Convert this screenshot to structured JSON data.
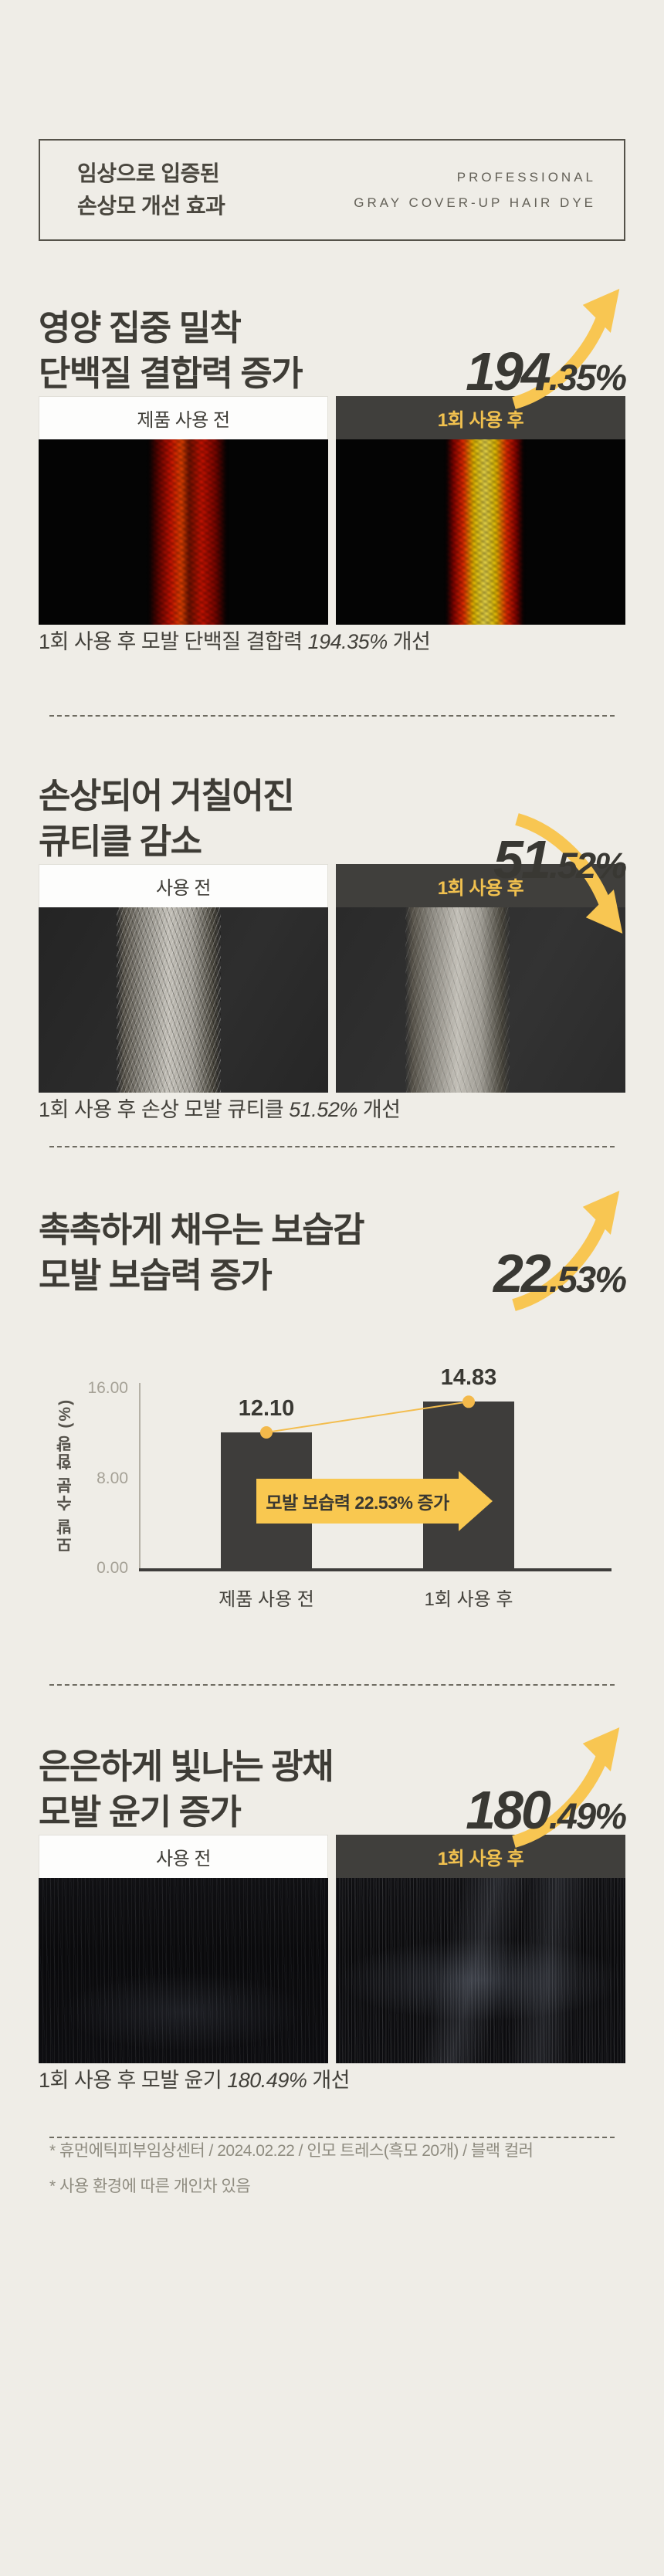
{
  "colors": {
    "background": "#efede7",
    "accent_yellow": "#f8c652",
    "dark_text": "#3e3c36",
    "panel_label_dark_bg": "#403f3c",
    "panel_label_yellow_text": "#f1c14f",
    "bar_color": "#3e3d3b",
    "footnote_gray": "#8f8c80"
  },
  "header": {
    "left_line1": "임상으로 입증된",
    "left_line2": "손상모 개선 효과",
    "right_line1": "PROFESSIONAL",
    "right_line2": "GRAY COVER-UP HAIR DYE"
  },
  "sections": [
    {
      "title_line1": "영양 집중 밀착",
      "title_line2": "단백질 결합력 증가",
      "pct_int": "194",
      "pct_frac": ".35%",
      "trend": "up",
      "before_label": "제품 사용 전",
      "after_label": "1회 사용 후",
      "caption_prefix": "1회 사용 후 모발 단백질 결합력 ",
      "caption_value": "194.35%",
      "caption_suffix": " 개선"
    },
    {
      "title_line1": "손상되어 거칠어진",
      "title_line2": "큐티클 감소",
      "pct_int": "51",
      "pct_frac": ".52%",
      "trend": "down",
      "before_label": "사용 전",
      "after_label": "1회 사용 후",
      "caption_prefix": "1회 사용 후 손상 모발 큐티클 ",
      "caption_value": "51.52%",
      "caption_suffix": " 개선"
    },
    {
      "title_line1": "촉촉하게 채우는 보습감",
      "title_line2": "모발 보습력 증가",
      "pct_int": "22",
      "pct_frac": ".53%",
      "trend": "up"
    },
    {
      "title_line1": "은은하게 빛나는 광채",
      "title_line2": "모발 윤기 증가",
      "pct_int": "180",
      "pct_frac": ".49%",
      "trend": "up",
      "before_label": "사용 전",
      "after_label": "1회 사용 후",
      "caption_prefix": "1회 사용 후 모발 윤기 ",
      "caption_value": "180.49%",
      "caption_suffix": " 개선"
    }
  ],
  "chart_data": {
    "type": "bar",
    "categories": [
      "제품 사용 전",
      "1회 사용 후"
    ],
    "values": [
      12.1,
      14.83
    ],
    "value_labels": [
      "12.10",
      "14.83"
    ],
    "ylabel": "모발 수분 함량 (%)",
    "yticks": [
      "16.00",
      "8.00",
      "0.00"
    ],
    "ytick_values": [
      16,
      8,
      0
    ],
    "ylim": [
      0,
      16.5
    ],
    "annotation": "모발 보습력 22.53% 증가",
    "legend": "none",
    "grid": "off",
    "bar_color": "#3e3d3b",
    "accent_color": "#f8c652"
  },
  "footnotes": [
    "* 휴먼에틱피부임상센터 / 2024.02.22 / 인모 트레스(흑모 20개) / 블랙 컬러",
    "* 사용 환경에 따른 개인차 있음"
  ]
}
